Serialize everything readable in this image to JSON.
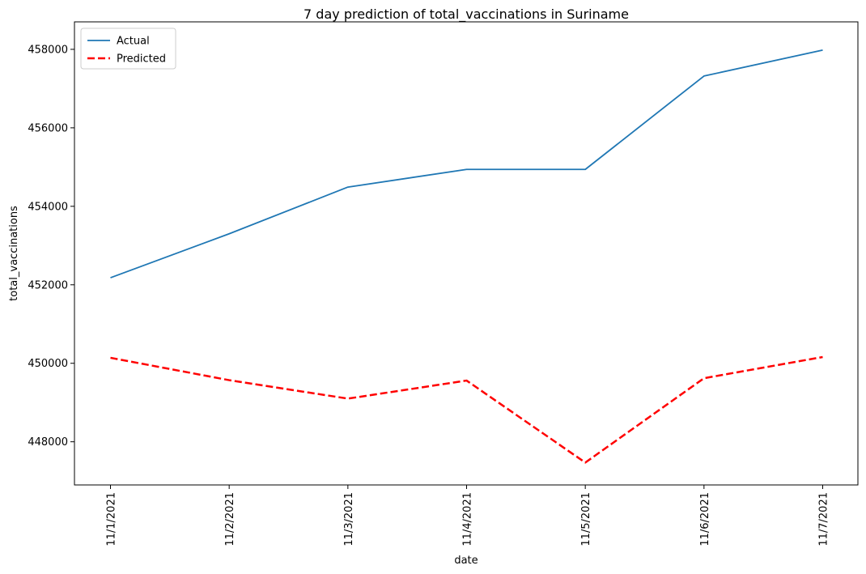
{
  "chart_data": {
    "type": "line",
    "title": "7 day prediction of total_vaccinations in Suriname",
    "xlabel": "date",
    "ylabel": "total_vaccinations",
    "x": [
      "11/1/2021",
      "11/2/2021",
      "11/3/2021",
      "11/4/2021",
      "11/5/2021",
      "11/6/2021",
      "11/7/2021"
    ],
    "ylim": [
      446900,
      458700
    ],
    "yticks": [
      448000,
      450000,
      452000,
      454000,
      456000,
      458000
    ],
    "grid": false,
    "legend_position": "top-left",
    "series": [
      {
        "name": "Actual",
        "values": [
          452180,
          453300,
          454490,
          454940,
          454940,
          457320,
          457980
        ],
        "color": "#1f77b4",
        "style": "solid"
      },
      {
        "name": "Predicted",
        "values": [
          450140,
          449570,
          449100,
          449560,
          447470,
          449620,
          450160
        ],
        "color": "#ff0000",
        "style": "dashed"
      }
    ]
  }
}
